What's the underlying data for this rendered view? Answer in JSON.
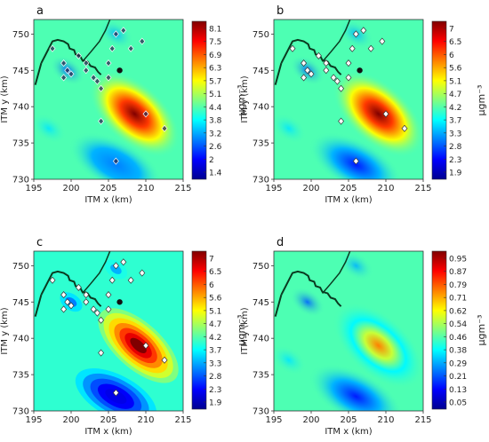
{
  "chart_data": [
    {
      "type": "heatmap",
      "panel_label": "a",
      "xlabel": "ITM x (km)",
      "ylabel": "ITM y (km)",
      "x_ticks": [
        195,
        200,
        205,
        210,
        215
      ],
      "y_ticks": [
        730,
        735,
        740,
        745,
        750
      ],
      "colorbar_ticks": [
        "8.1",
        "7.5",
        "6.9",
        "6.3",
        "5.7",
        "5.1",
        "4.4",
        "3.8",
        "3.2",
        "2.6",
        "2",
        "1.4"
      ],
      "colorbar_unit": "μgm⁻³",
      "style": "smooth",
      "hotspot": {
        "x": 208.5,
        "y": 739,
        "level": 1.0
      },
      "coldspot": {
        "x": 206,
        "y": 732,
        "level": 0.25
      },
      "point_color": "dark",
      "stations": [
        [
          197.5,
          748
        ],
        [
          199,
          746
        ],
        [
          199.5,
          745
        ],
        [
          200,
          744.5
        ],
        [
          201,
          747
        ],
        [
          202,
          746
        ],
        [
          202,
          745
        ],
        [
          203,
          744
        ],
        [
          203.5,
          743.5
        ],
        [
          204,
          742.5
        ],
        [
          205,
          746
        ],
        [
          205,
          744
        ],
        [
          205.5,
          748
        ],
        [
          206,
          750
        ],
        [
          207,
          750.5
        ],
        [
          208,
          748
        ],
        [
          209.5,
          749
        ],
        [
          210,
          739
        ],
        [
          212.5,
          737
        ],
        [
          204,
          738
        ],
        [
          206,
          732.5
        ],
        [
          199,
          744
        ]
      ],
      "site": [
        206.5,
        745
      ]
    },
    {
      "type": "heatmap",
      "panel_label": "b",
      "xlabel": "ITM x (km)",
      "ylabel": "ITM y (km)",
      "x_ticks": [
        195,
        200,
        205,
        210,
        215
      ],
      "y_ticks": [
        730,
        735,
        740,
        745,
        750
      ],
      "colorbar_ticks": [
        "7",
        "6.5",
        "6",
        "5.6",
        "5.1",
        "4.7",
        "4.2",
        "3.7",
        "3.3",
        "2.8",
        "2.3",
        "1.9"
      ],
      "colorbar_unit": "μgm⁻³",
      "style": "smooth",
      "hotspot": {
        "x": 209,
        "y": 739,
        "level": 1.0
      },
      "coldspot": {
        "x": 206,
        "y": 732,
        "level": 0.15
      },
      "point_color": "light",
      "stations": [
        [
          197.5,
          748
        ],
        [
          199,
          746
        ],
        [
          199.5,
          745
        ],
        [
          200,
          744.5
        ],
        [
          201,
          747
        ],
        [
          202,
          746
        ],
        [
          202,
          745
        ],
        [
          203,
          744
        ],
        [
          203.5,
          743.5
        ],
        [
          204,
          742.5
        ],
        [
          205,
          746
        ],
        [
          205,
          744
        ],
        [
          205.5,
          748
        ],
        [
          206,
          750
        ],
        [
          207,
          750.5
        ],
        [
          208,
          748
        ],
        [
          209.5,
          749
        ],
        [
          210,
          739
        ],
        [
          212.5,
          737
        ],
        [
          204,
          738
        ],
        [
          206,
          732.5
        ],
        [
          199,
          744
        ]
      ],
      "site": [
        206.5,
        745
      ]
    },
    {
      "type": "heatmap",
      "panel_label": "c",
      "xlabel": "ITM x (km)",
      "ylabel": "ITM y (km)",
      "x_ticks": [
        195,
        200,
        205,
        210,
        215
      ],
      "y_ticks": [
        730,
        735,
        740,
        745,
        750
      ],
      "colorbar_ticks": [
        "7",
        "6.5",
        "6",
        "5.6",
        "5.1",
        "4.7",
        "4.2",
        "3.7",
        "3.3",
        "2.8",
        "2.3",
        "1.9"
      ],
      "colorbar_unit": "μgm⁻³",
      "style": "banded",
      "hotspot": {
        "x": 209,
        "y": 739,
        "level": 1.0
      },
      "coldspot": {
        "x": 206,
        "y": 732,
        "level": 0.1
      },
      "point_color": "light",
      "stations": [
        [
          197.5,
          748
        ],
        [
          199,
          746
        ],
        [
          199.5,
          745
        ],
        [
          200,
          744.5
        ],
        [
          201,
          747
        ],
        [
          202,
          746
        ],
        [
          202,
          745
        ],
        [
          203,
          744
        ],
        [
          203.5,
          743.5
        ],
        [
          204,
          742.5
        ],
        [
          205,
          746
        ],
        [
          205,
          744
        ],
        [
          205.5,
          748
        ],
        [
          206,
          750
        ],
        [
          207,
          750.5
        ],
        [
          208,
          748
        ],
        [
          209.5,
          749
        ],
        [
          210,
          739
        ],
        [
          212.5,
          737
        ],
        [
          204,
          738
        ],
        [
          206,
          732.5
        ],
        [
          199,
          744
        ]
      ],
      "site": [
        206.5,
        745
      ]
    },
    {
      "type": "heatmap",
      "panel_label": "d",
      "xlabel": "ITM x (km)",
      "ylabel": "ITM y (km)",
      "x_ticks": [
        195,
        200,
        205,
        210,
        215
      ],
      "y_ticks": [
        730,
        735,
        740,
        745,
        750
      ],
      "colorbar_ticks": [
        "0.95",
        "0.87",
        "0.79",
        "0.71",
        "0.62",
        "0.54",
        "0.46",
        "0.38",
        "0.29",
        "0.21",
        "0.13",
        "0.05"
      ],
      "colorbar_unit": "μgm⁻³",
      "style": "smooth",
      "hotspot": {
        "x": 209,
        "y": 739,
        "level": 0.75
      },
      "coldspot": {
        "x": 206,
        "y": 732,
        "level": 0.15
      },
      "point_color": "none",
      "stations": [],
      "site": null
    }
  ],
  "colors": {
    "jet": [
      "#00008f",
      "#0000ff",
      "#0080ff",
      "#00ffff",
      "#80ff80",
      "#ffff00",
      "#ff8000",
      "#ff0000",
      "#800000"
    ],
    "coast": "#0a3a20"
  }
}
